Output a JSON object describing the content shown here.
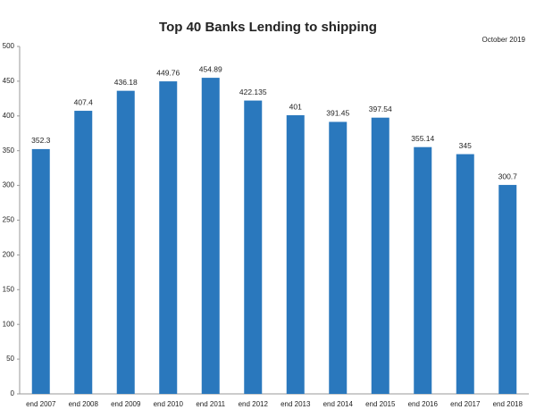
{
  "chart_data": {
    "type": "bar",
    "title": "Top 40 Banks Lending to shipping",
    "subtitle": "October 2019",
    "categories": [
      "end 2007",
      "end 2008",
      "end 2009",
      "end 2010",
      "end 2011",
      "end 2012",
      "end 2013",
      "end 2014",
      "end 2015",
      "end 2016",
      "end 2017",
      "end 2018"
    ],
    "values": [
      352.3,
      407.4,
      436.18,
      449.76,
      454.89,
      422.135,
      401,
      391.45,
      397.54,
      355.14,
      345,
      300.7
    ],
    "color": "#2a78bd",
    "ylim": [
      0,
      500
    ],
    "yticks": [
      0,
      50,
      100,
      150,
      200,
      250,
      300,
      350,
      400,
      450,
      500
    ],
    "grid": false
  }
}
